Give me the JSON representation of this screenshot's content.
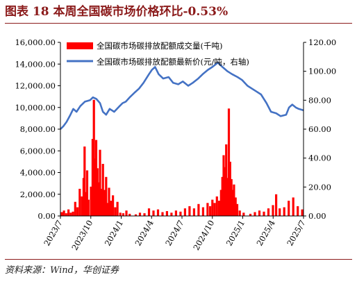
{
  "figure": {
    "title": "图表 18    本周全国碳市场价格环比-0.53%",
    "source": "资料来源：Wind，华创证券"
  },
  "colors": {
    "bar": "#FF0000",
    "line": "#4472C4",
    "title": "#8B1A1A",
    "axis": "#000000"
  },
  "chart_data": {
    "type": "bar+line",
    "x_tick_labels": [
      "2023/7",
      "2023/10",
      "2024/1",
      "2024/4",
      "2024/7",
      "2024/10",
      "2025/1",
      "2025/4",
      "2025/7"
    ],
    "x_range": [
      "2023-07-01",
      "2025-07-25"
    ],
    "y_left": {
      "ticks": [
        "0.00",
        "2,000.00",
        "4,000.00",
        "6,000.00",
        "8,000.00",
        "10,000.00",
        "12,000.00",
        "14,000.00",
        "16,000.00"
      ],
      "range": [
        0,
        16000
      ]
    },
    "y_right": {
      "ticks": [
        "0.00",
        "20.00",
        "40.00",
        "60.00",
        "80.00",
        "100.00",
        "120.00"
      ],
      "range": [
        0,
        120
      ]
    },
    "legend": [
      {
        "label": "全国碳市场碳排放配额成交量(千吨)",
        "kind": "bar"
      },
      {
        "label": "全国碳市场碳排放配额最新价(元/吨，右轴)",
        "kind": "line"
      }
    ],
    "legend_position": "top-left",
    "grid": false,
    "series": [
      {
        "name": "全国碳市场碳排放配额成交量(千吨)",
        "axis": "left",
        "kind": "bar",
        "points": [
          [
            "2023-07-05",
            350
          ],
          [
            "2023-07-12",
            500
          ],
          [
            "2023-07-19",
            250
          ],
          [
            "2023-07-26",
            600
          ],
          [
            "2023-08-02",
            300
          ],
          [
            "2023-08-09",
            400
          ],
          [
            "2023-08-16",
            1300
          ],
          [
            "2023-08-23",
            800
          ],
          [
            "2023-08-30",
            2500
          ],
          [
            "2023-09-06",
            1800
          ],
          [
            "2023-09-11",
            3500
          ],
          [
            "2023-09-14",
            6400
          ],
          [
            "2023-09-18",
            2200
          ],
          [
            "2023-09-22",
            4200
          ],
          [
            "2023-09-26",
            1500
          ],
          [
            "2023-10-04",
            2700
          ],
          [
            "2023-10-09",
            7100
          ],
          [
            "2023-10-13",
            10700
          ],
          [
            "2023-10-17",
            5300
          ],
          [
            "2023-10-20",
            7000
          ],
          [
            "2023-10-24",
            4400
          ],
          [
            "2023-10-27",
            3100
          ],
          [
            "2023-11-01",
            6100
          ],
          [
            "2023-11-06",
            2500
          ],
          [
            "2023-11-10",
            4800
          ],
          [
            "2023-11-15",
            2400
          ],
          [
            "2023-11-20",
            3600
          ],
          [
            "2023-11-24",
            1200
          ],
          [
            "2023-11-29",
            2600
          ],
          [
            "2023-12-05",
            1400
          ],
          [
            "2023-12-11",
            1900
          ],
          [
            "2023-12-18",
            800
          ],
          [
            "2023-12-25",
            1300
          ],
          [
            "2024-01-03",
            300
          ],
          [
            "2024-01-12",
            250
          ],
          [
            "2024-01-22",
            500
          ],
          [
            "2024-02-01",
            200
          ],
          [
            "2024-02-20",
            150
          ],
          [
            "2024-03-04",
            300
          ],
          [
            "2024-03-18",
            250
          ],
          [
            "2024-04-01",
            700
          ],
          [
            "2024-04-15",
            500
          ],
          [
            "2024-04-29",
            600
          ],
          [
            "2024-05-13",
            350
          ],
          [
            "2024-05-27",
            450
          ],
          [
            "2024-06-10",
            300
          ],
          [
            "2024-06-24",
            500
          ],
          [
            "2024-07-08",
            400
          ],
          [
            "2024-07-22",
            700
          ],
          [
            "2024-08-05",
            900
          ],
          [
            "2024-08-19",
            700
          ],
          [
            "2024-09-02",
            1100
          ],
          [
            "2024-09-16",
            800
          ],
          [
            "2024-09-30",
            1200
          ],
          [
            "2024-10-08",
            900
          ],
          [
            "2024-10-15",
            1500
          ],
          [
            "2024-10-22",
            1200
          ],
          [
            "2024-10-29",
            1800
          ],
          [
            "2024-11-05",
            1400
          ],
          [
            "2024-11-11",
            2400
          ],
          [
            "2024-11-15",
            3600
          ],
          [
            "2024-11-19",
            5600
          ],
          [
            "2024-11-23",
            4500
          ],
          [
            "2024-11-27",
            6600
          ],
          [
            "2024-12-01",
            3500
          ],
          [
            "2024-12-05",
            9900
          ],
          [
            "2024-12-09",
            5000
          ],
          [
            "2024-12-13",
            3400
          ],
          [
            "2024-12-17",
            2400
          ],
          [
            "2024-12-21",
            2900
          ],
          [
            "2024-12-26",
            1700
          ],
          [
            "2024-12-31",
            1100
          ],
          [
            "2025-01-08",
            500
          ],
          [
            "2025-01-20",
            300
          ],
          [
            "2025-02-10",
            200
          ],
          [
            "2025-02-24",
            350
          ],
          [
            "2025-03-10",
            500
          ],
          [
            "2025-03-24",
            400
          ],
          [
            "2025-04-07",
            700
          ],
          [
            "2025-04-21",
            1000
          ],
          [
            "2025-05-01",
            2000
          ],
          [
            "2025-05-12",
            700
          ],
          [
            "2025-05-26",
            800
          ],
          [
            "2025-06-09",
            1400
          ],
          [
            "2025-06-23",
            1700
          ],
          [
            "2025-07-07",
            900
          ],
          [
            "2025-07-21",
            600
          ]
        ]
      },
      {
        "name": "全国碳市场碳排放配额最新价(元/吨，右轴)",
        "axis": "right",
        "kind": "line",
        "points": [
          [
            "2023-07-01",
            60
          ],
          [
            "2023-07-10",
            62
          ],
          [
            "2023-07-20",
            65
          ],
          [
            "2023-08-01",
            70
          ],
          [
            "2023-08-10",
            74
          ],
          [
            "2023-08-20",
            72
          ],
          [
            "2023-09-01",
            76
          ],
          [
            "2023-09-15",
            79
          ],
          [
            "2023-10-01",
            80
          ],
          [
            "2023-10-10",
            82
          ],
          [
            "2023-10-20",
            81
          ],
          [
            "2023-11-01",
            78
          ],
          [
            "2023-11-10",
            72
          ],
          [
            "2023-11-20",
            70
          ],
          [
            "2023-12-01",
            74
          ],
          [
            "2023-12-15",
            72
          ],
          [
            "2024-01-01",
            76
          ],
          [
            "2024-01-10",
            78
          ],
          [
            "2024-01-20",
            79
          ],
          [
            "2024-02-01",
            82
          ],
          [
            "2024-02-15",
            85
          ],
          [
            "2024-03-01",
            88
          ],
          [
            "2024-03-15",
            92
          ],
          [
            "2024-04-01",
            98
          ],
          [
            "2024-04-10",
            101
          ],
          [
            "2024-04-20",
            103
          ],
          [
            "2024-05-01",
            98
          ],
          [
            "2024-05-15",
            95
          ],
          [
            "2024-06-01",
            96
          ],
          [
            "2024-06-15",
            92
          ],
          [
            "2024-07-01",
            91
          ],
          [
            "2024-07-15",
            93
          ],
          [
            "2024-08-01",
            90
          ],
          [
            "2024-08-15",
            92
          ],
          [
            "2024-09-01",
            95
          ],
          [
            "2024-09-15",
            98
          ],
          [
            "2024-10-01",
            101
          ],
          [
            "2024-10-15",
            103
          ],
          [
            "2024-11-01",
            106
          ],
          [
            "2024-11-15",
            103
          ],
          [
            "2024-12-01",
            100
          ],
          [
            "2024-12-15",
            98
          ],
          [
            "2025-01-01",
            96
          ],
          [
            "2025-01-15",
            94
          ],
          [
            "2025-02-01",
            90
          ],
          [
            "2025-02-15",
            88
          ],
          [
            "2025-03-01",
            86
          ],
          [
            "2025-03-15",
            84
          ],
          [
            "2025-04-01",
            78
          ],
          [
            "2025-04-15",
            72
          ],
          [
            "2025-05-01",
            71
          ],
          [
            "2025-05-15",
            69
          ],
          [
            "2025-06-01",
            70
          ],
          [
            "2025-06-10",
            75
          ],
          [
            "2025-06-20",
            77
          ],
          [
            "2025-07-01",
            75
          ],
          [
            "2025-07-10",
            74
          ],
          [
            "2025-07-25",
            73
          ]
        ]
      }
    ]
  }
}
